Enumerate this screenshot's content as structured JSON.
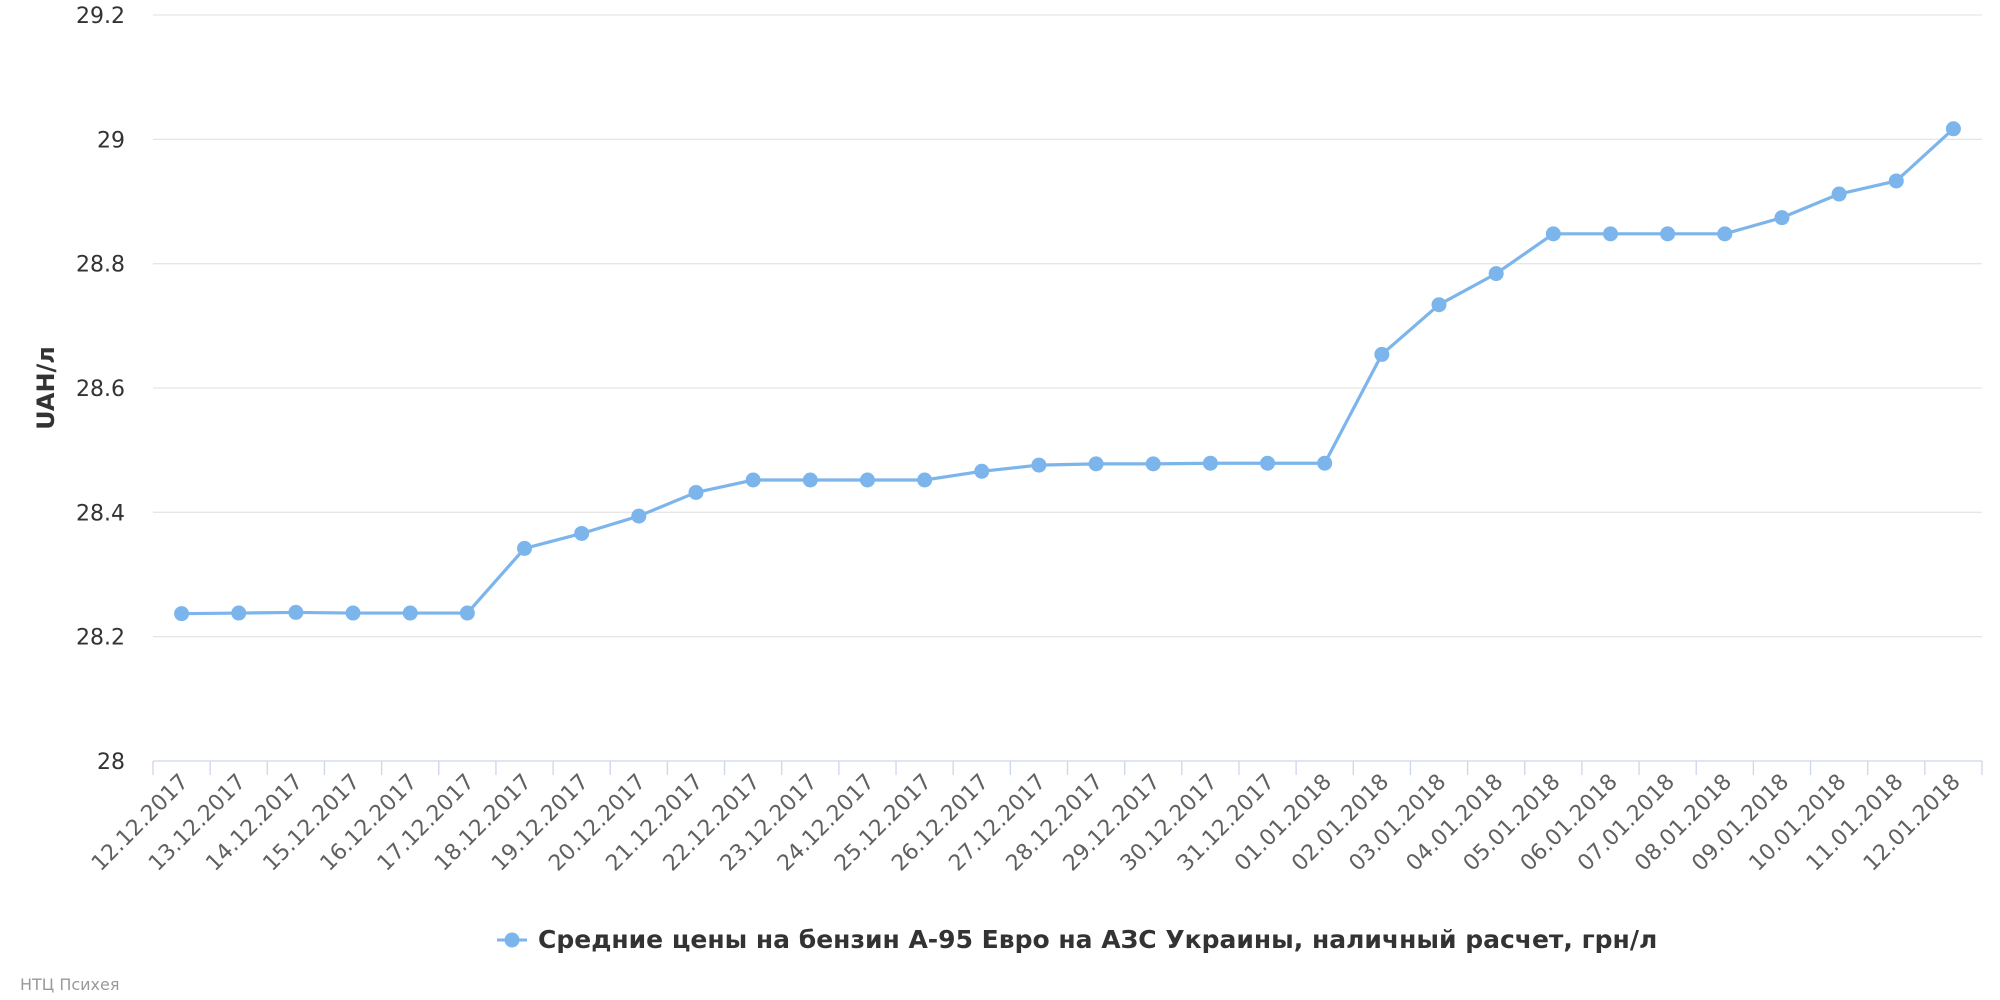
{
  "chart_data": {
    "type": "line",
    "title": "",
    "ylabel": "UAH/л",
    "xlabel": "",
    "ylim": [
      28,
      29.2
    ],
    "yticks": [
      "28",
      "28.2",
      "28.4",
      "28.6",
      "28.8",
      "29",
      "29.2"
    ],
    "grid": true,
    "legend_position": "bottom-center",
    "categories": [
      "12.12.2017",
      "13.12.2017",
      "14.12.2017",
      "15.12.2017",
      "16.12.2017",
      "17.12.2017",
      "18.12.2017",
      "19.12.2017",
      "20.12.2017",
      "21.12.2017",
      "22.12.2017",
      "23.12.2017",
      "24.12.2017",
      "25.12.2017",
      "26.12.2017",
      "27.12.2017",
      "28.12.2017",
      "29.12.2017",
      "30.12.2017",
      "31.12.2017",
      "01.01.2018",
      "02.01.2018",
      "03.01.2018",
      "04.01.2018",
      "05.01.2018",
      "06.01.2018",
      "07.01.2018",
      "08.01.2018",
      "09.01.2018",
      "10.01.2018",
      "11.01.2018",
      "12.01.2018"
    ],
    "series": [
      {
        "name": "Средние цены на бензин А-95 Евро на АЗС Украины, наличный расчет, грн/л",
        "color": "#7cb5ec",
        "values": [
          28.237,
          28.238,
          28.239,
          28.238,
          28.238,
          28.238,
          28.342,
          28.366,
          28.394,
          28.432,
          28.452,
          28.452,
          28.452,
          28.452,
          28.466,
          28.476,
          28.478,
          28.478,
          28.479,
          28.479,
          28.479,
          28.654,
          28.734,
          28.784,
          28.848,
          28.848,
          28.848,
          28.848,
          28.874,
          28.912,
          28.933,
          29.017
        ]
      }
    ]
  },
  "credit": "НТЦ Психея"
}
